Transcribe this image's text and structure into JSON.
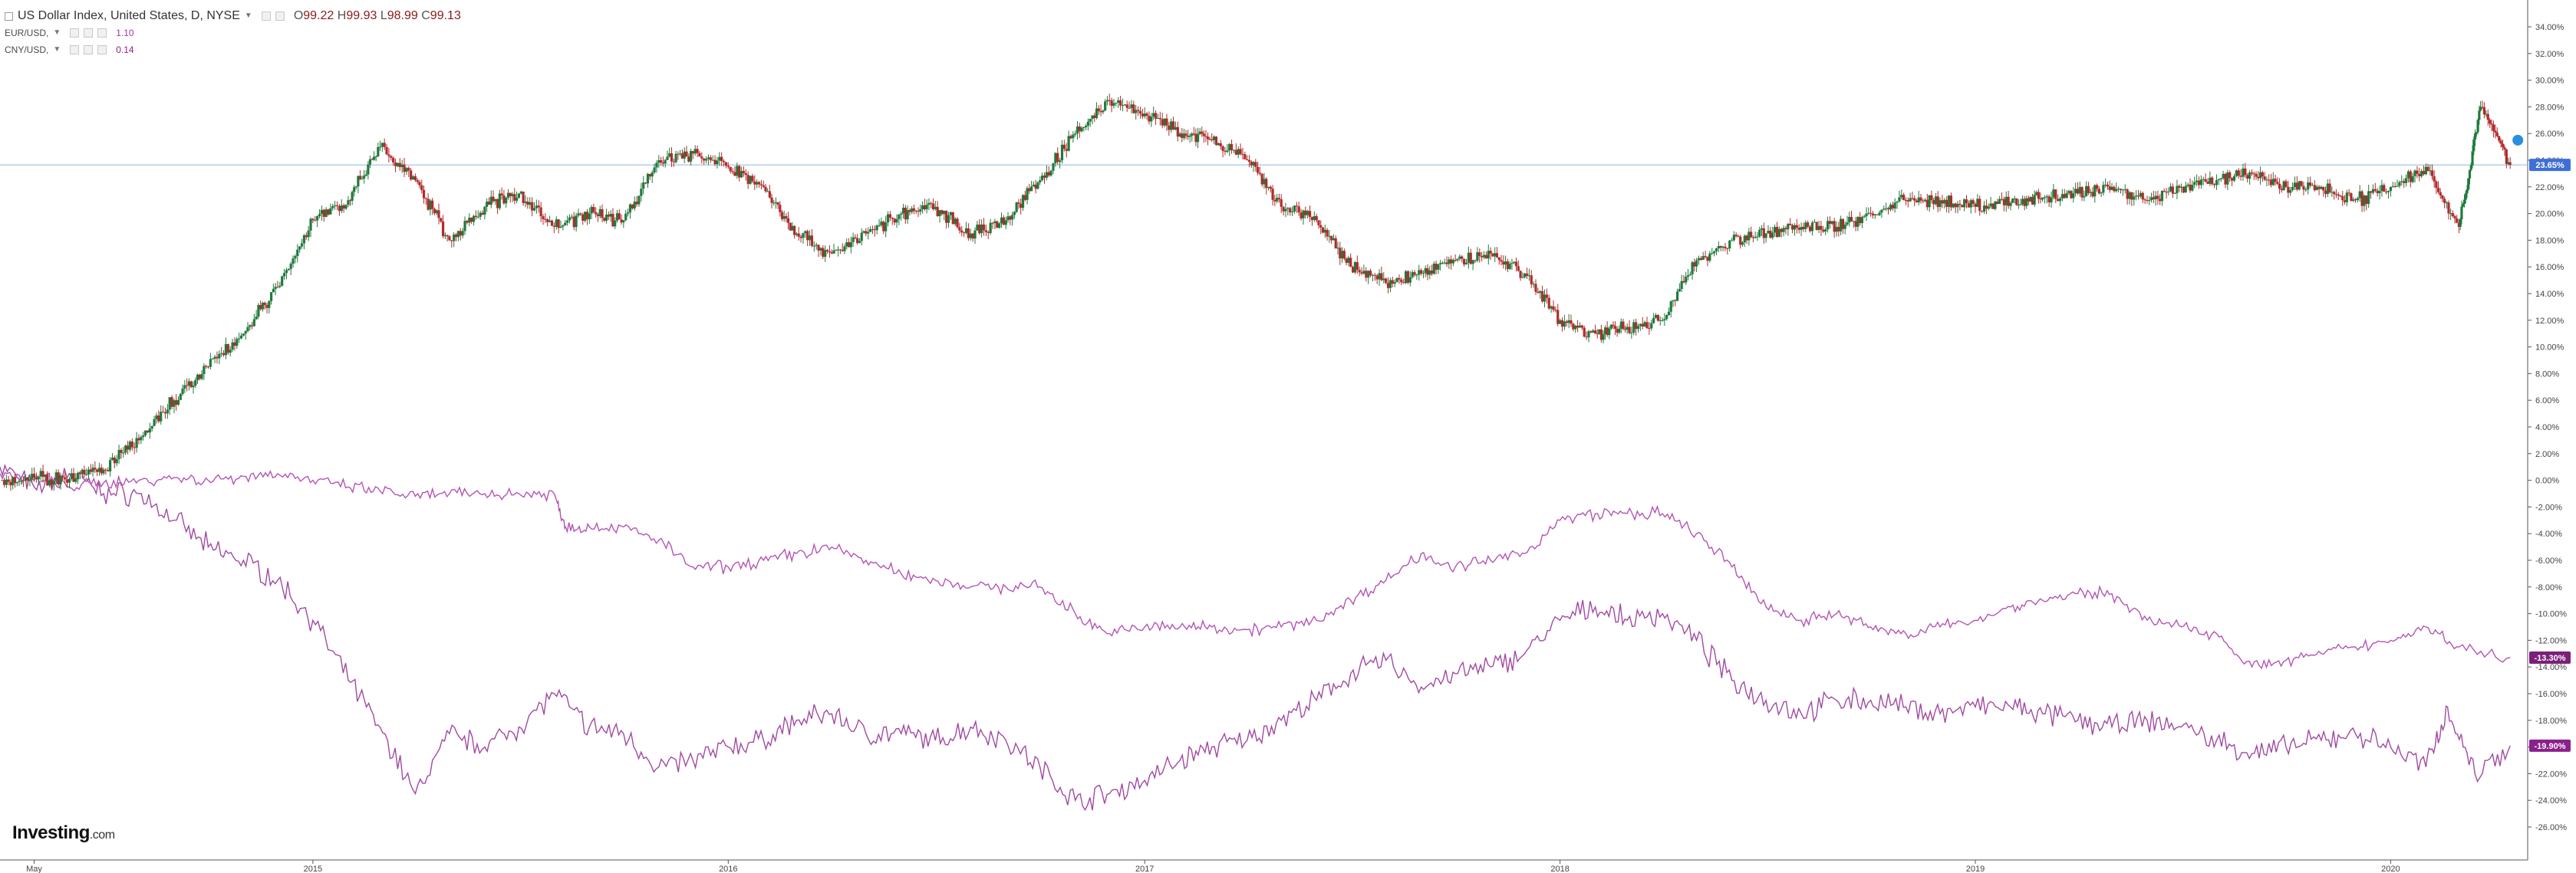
{
  "legend": {
    "main": {
      "title": "US Dollar Index, United States, D, NYSE",
      "open_label": "O",
      "open": "99.22",
      "high_label": "H",
      "high": "99.93",
      "low_label": "L",
      "low": "98.99",
      "close_label": "C",
      "close": "99.13"
    },
    "eur": {
      "title": "EUR/USD,",
      "value": "1.10"
    },
    "cny": {
      "title": "CNY/USD,",
      "value": "0.14"
    }
  },
  "logo": {
    "main": "Investing",
    "suffix": ".com"
  },
  "colors": {
    "candle_up": "#1f7a3c",
    "candle_down": "#b22a2a",
    "eur_line": "#b455b4",
    "cny_line": "#a14aa1",
    "hline": "#8fb6de",
    "label_usd": "#3d6fd6",
    "label_eur": "#7a1f7a",
    "label_cny": "#8b1f8b"
  },
  "chart_data": {
    "type": "line",
    "x_axis_labels": [
      "May",
      "2015",
      "2016",
      "2017",
      "2018",
      "2019",
      "2020"
    ],
    "y_axis_labels": [
      "34.00%",
      "32.00%",
      "30.00%",
      "28.00%",
      "26.00%",
      "24.00%",
      "22.00%",
      "20.00%",
      "18.00%",
      "16.00%",
      "14.00%",
      "12.00%",
      "10.00%",
      "8.00%",
      "6.00%",
      "4.00%",
      "2.00%",
      "0.00%",
      "-2.00%",
      "-4.00%",
      "-6.00%",
      "-8.00%",
      "-10.00%",
      "-12.00%",
      "-14.00%",
      "-16.00%",
      "-18.00%",
      "-20.00%",
      "-22.00%",
      "-24.00%",
      "-26.00%"
    ],
    "ylim": [
      -27,
      35
    ],
    "y_unit": "percent change",
    "horizontal_line": 23.65,
    "series": [
      {
        "name": "US Dollar Index",
        "style": "candlestick",
        "last_label": "23.65%",
        "points": [
          [
            "2014-04-01",
            0
          ],
          [
            "2014-05-01",
            0.2
          ],
          [
            "2014-06-01",
            0.1
          ],
          [
            "2014-07-01",
            0.8
          ],
          [
            "2014-08-01",
            3.0
          ],
          [
            "2014-09-01",
            6.0
          ],
          [
            "2014-10-01",
            8.5
          ],
          [
            "2014-11-01",
            11.0
          ],
          [
            "2014-12-01",
            14.5
          ],
          [
            "2015-01-01",
            19.5
          ],
          [
            "2015-02-01",
            21.0
          ],
          [
            "2015-03-01",
            25.0
          ],
          [
            "2015-04-01",
            22.5
          ],
          [
            "2015-05-01",
            18.0
          ],
          [
            "2015-06-01",
            20.5
          ],
          [
            "2015-07-01",
            21.5
          ],
          [
            "2015-08-01",
            19.0
          ],
          [
            "2015-09-01",
            20.0
          ],
          [
            "2015-10-01",
            19.5
          ],
          [
            "2015-11-01",
            24.0
          ],
          [
            "2015-12-01",
            24.5
          ],
          [
            "2016-01-01",
            23.5
          ],
          [
            "2016-02-01",
            22.0
          ],
          [
            "2016-03-01",
            18.5
          ],
          [
            "2016-04-01",
            17.0
          ],
          [
            "2016-05-01",
            18.5
          ],
          [
            "2016-06-01",
            20.0
          ],
          [
            "2016-07-01",
            20.5
          ],
          [
            "2016-08-01",
            18.5
          ],
          [
            "2016-09-01",
            19.5
          ],
          [
            "2016-10-01",
            22.5
          ],
          [
            "2016-11-01",
            26.0
          ],
          [
            "2016-12-01",
            28.5
          ],
          [
            "2017-01-01",
            27.5
          ],
          [
            "2017-02-01",
            26.0
          ],
          [
            "2017-03-01",
            25.5
          ],
          [
            "2017-04-01",
            24.0
          ],
          [
            "2017-05-01",
            20.5
          ],
          [
            "2017-06-01",
            19.5
          ],
          [
            "2017-07-01",
            16.0
          ],
          [
            "2017-08-01",
            14.8
          ],
          [
            "2017-09-01",
            15.5
          ],
          [
            "2017-10-01",
            16.5
          ],
          [
            "2017-11-01",
            17.0
          ],
          [
            "2017-12-01",
            15.5
          ],
          [
            "2018-01-01",
            12.0
          ],
          [
            "2018-02-01",
            11.0
          ],
          [
            "2018-03-01",
            11.5
          ],
          [
            "2018-04-01",
            12.0
          ],
          [
            "2018-05-01",
            16.5
          ],
          [
            "2018-06-01",
            18.0
          ],
          [
            "2018-07-01",
            18.5
          ],
          [
            "2018-08-01",
            19.0
          ],
          [
            "2018-09-01",
            19.0
          ],
          [
            "2018-10-01",
            20.0
          ],
          [
            "2018-11-01",
            21.0
          ],
          [
            "2018-12-01",
            21.0
          ],
          [
            "2019-01-01",
            20.5
          ],
          [
            "2019-02-01",
            20.8
          ],
          [
            "2019-03-01",
            21.2
          ],
          [
            "2019-04-01",
            21.5
          ],
          [
            "2019-05-01",
            22.0
          ],
          [
            "2019-06-01",
            21.0
          ],
          [
            "2019-07-01",
            22.0
          ],
          [
            "2019-08-01",
            22.5
          ],
          [
            "2019-09-01",
            23.0
          ],
          [
            "2019-10-01",
            22.0
          ],
          [
            "2019-11-01",
            22.0
          ],
          [
            "2019-12-01",
            21.0
          ],
          [
            "2020-01-01",
            22.0
          ],
          [
            "2020-02-01",
            23.5
          ],
          [
            "2020-03-01",
            19.0
          ],
          [
            "2020-03-20",
            28.0
          ],
          [
            "2020-04-15",
            23.65
          ]
        ]
      },
      {
        "name": "EUR/USD",
        "style": "line",
        "last_label": "-13.30%",
        "points": [
          [
            "2014-04-01",
            0.5
          ],
          [
            "2014-05-01",
            0.0
          ],
          [
            "2014-06-01",
            -0.5
          ],
          [
            "2014-07-01",
            -0.2
          ],
          [
            "2014-08-01",
            0.0
          ],
          [
            "2014-09-01",
            0.2
          ],
          [
            "2014-10-01",
            0.0
          ],
          [
            "2014-11-01",
            0.3
          ],
          [
            "2014-12-01",
            0.5
          ],
          [
            "2015-01-01",
            0.0
          ],
          [
            "2015-02-01",
            -0.5
          ],
          [
            "2015-03-01",
            -0.8
          ],
          [
            "2015-04-01",
            -1.2
          ],
          [
            "2015-05-01",
            -1.0
          ],
          [
            "2015-06-01",
            -1.0
          ],
          [
            "2015-07-01",
            -1.0
          ],
          [
            "2015-08-01",
            -1.0
          ],
          [
            "2015-08-11",
            -3.5
          ],
          [
            "2015-09-01",
            -3.5
          ],
          [
            "2015-10-01",
            -3.5
          ],
          [
            "2015-11-01",
            -4.5
          ],
          [
            "2015-12-01",
            -6.5
          ],
          [
            "2016-01-01",
            -6.5
          ],
          [
            "2016-02-01",
            -6.0
          ],
          [
            "2016-03-01",
            -5.5
          ],
          [
            "2016-04-01",
            -5.0
          ],
          [
            "2016-05-01",
            -6.0
          ],
          [
            "2016-06-01",
            -7.0
          ],
          [
            "2016-07-01",
            -7.5
          ],
          [
            "2016-08-01",
            -8.0
          ],
          [
            "2016-09-01",
            -8.0
          ],
          [
            "2016-10-01",
            -8.0
          ],
          [
            "2016-11-01",
            -10.0
          ],
          [
            "2016-12-01",
            -11.5
          ],
          [
            "2017-01-01",
            -11.0
          ],
          [
            "2017-02-01",
            -11.0
          ],
          [
            "2017-03-01",
            -11.0
          ],
          [
            "2017-04-01",
            -11.2
          ],
          [
            "2017-05-01",
            -11.0
          ],
          [
            "2017-06-01",
            -10.5
          ],
          [
            "2017-07-01",
            -9.0
          ],
          [
            "2017-08-01",
            -7.5
          ],
          [
            "2017-09-01",
            -5.5
          ],
          [
            "2017-10-01",
            -6.5
          ],
          [
            "2017-11-01",
            -6.0
          ],
          [
            "2017-12-01",
            -5.5
          ],
          [
            "2018-01-01",
            -3.0
          ],
          [
            "2018-02-01",
            -2.5
          ],
          [
            "2018-03-01",
            -2.5
          ],
          [
            "2018-04-01",
            -2.5
          ],
          [
            "2018-05-01",
            -4.0
          ],
          [
            "2018-06-01",
            -6.5
          ],
          [
            "2018-07-01",
            -9.5
          ],
          [
            "2018-08-01",
            -10.5
          ],
          [
            "2018-09-01",
            -10.0
          ],
          [
            "2018-10-01",
            -11.0
          ],
          [
            "2018-11-01",
            -11.5
          ],
          [
            "2018-12-01",
            -11.0
          ],
          [
            "2019-01-01",
            -10.5
          ],
          [
            "2019-02-01",
            -9.5
          ],
          [
            "2019-03-01",
            -9.0
          ],
          [
            "2019-04-01",
            -8.5
          ],
          [
            "2019-05-01",
            -8.5
          ],
          [
            "2019-06-01",
            -10.5
          ],
          [
            "2019-07-01",
            -11.0
          ],
          [
            "2019-08-01",
            -11.5
          ],
          [
            "2019-09-01",
            -14.0
          ],
          [
            "2019-10-01",
            -13.5
          ],
          [
            "2019-11-01",
            -13.0
          ],
          [
            "2019-12-01",
            -12.5
          ],
          [
            "2020-01-01",
            -12.0
          ],
          [
            "2020-02-01",
            -11.0
          ],
          [
            "2020-03-01",
            -12.5
          ],
          [
            "2020-04-15",
            -13.3
          ]
        ]
      },
      {
        "name": "CNY/USD",
        "style": "line",
        "last_label": "-19.90%",
        "points": [
          [
            "2014-04-01",
            1.0
          ],
          [
            "2014-05-01",
            -0.5
          ],
          [
            "2014-06-01",
            0.5
          ],
          [
            "2014-07-01",
            -1.0
          ],
          [
            "2014-08-01",
            -1.0
          ],
          [
            "2014-09-01",
            -3.0
          ],
          [
            "2014-10-01",
            -5.0
          ],
          [
            "2014-11-01",
            -6.0
          ],
          [
            "2014-12-01",
            -7.5
          ],
          [
            "2015-01-01",
            -10.5
          ],
          [
            "2015-02-01",
            -15.0
          ],
          [
            "2015-03-01",
            -18.5
          ],
          [
            "2015-04-01",
            -23.5
          ],
          [
            "2015-05-01",
            -19.0
          ],
          [
            "2015-06-01",
            -20.0
          ],
          [
            "2015-07-01",
            -18.5
          ],
          [
            "2015-08-01",
            -16.0
          ],
          [
            "2015-09-01",
            -18.5
          ],
          [
            "2015-10-01",
            -19.0
          ],
          [
            "2015-11-01",
            -21.5
          ],
          [
            "2015-12-01",
            -21.0
          ],
          [
            "2016-01-01",
            -20.0
          ],
          [
            "2016-02-01",
            -19.5
          ],
          [
            "2016-03-01",
            -18.0
          ],
          [
            "2016-04-01",
            -17.5
          ],
          [
            "2016-05-01",
            -19.0
          ],
          [
            "2016-06-01",
            -19.0
          ],
          [
            "2016-07-01",
            -19.5
          ],
          [
            "2016-08-01",
            -18.5
          ],
          [
            "2016-09-01",
            -19.5
          ],
          [
            "2016-10-01",
            -21.5
          ],
          [
            "2016-11-01",
            -24.0
          ],
          [
            "2016-12-01",
            -23.5
          ],
          [
            "2017-01-01",
            -22.5
          ],
          [
            "2017-02-01",
            -21.0
          ],
          [
            "2017-03-01",
            -20.0
          ],
          [
            "2017-04-01",
            -19.5
          ],
          [
            "2017-05-01",
            -18.0
          ],
          [
            "2017-06-01",
            -16.5
          ],
          [
            "2017-07-01",
            -14.5
          ],
          [
            "2017-08-01",
            -13.5
          ],
          [
            "2017-09-01",
            -15.5
          ],
          [
            "2017-10-01",
            -14.5
          ],
          [
            "2017-11-01",
            -14.0
          ],
          [
            "2017-12-01",
            -13.0
          ],
          [
            "2018-01-01",
            -10.5
          ],
          [
            "2018-02-01",
            -9.5
          ],
          [
            "2018-03-01",
            -10.5
          ],
          [
            "2018-04-01",
            -10.0
          ],
          [
            "2018-05-01",
            -12.0
          ],
          [
            "2018-06-01",
            -15.0
          ],
          [
            "2018-07-01",
            -16.5
          ],
          [
            "2018-08-01",
            -17.5
          ],
          [
            "2018-09-01",
            -16.5
          ],
          [
            "2018-10-01",
            -16.5
          ],
          [
            "2018-11-01",
            -17.0
          ],
          [
            "2018-12-01",
            -17.5
          ],
          [
            "2019-01-01",
            -17.0
          ],
          [
            "2019-02-01",
            -17.0
          ],
          [
            "2019-03-01",
            -17.5
          ],
          [
            "2019-04-01",
            -18.0
          ],
          [
            "2019-05-01",
            -18.5
          ],
          [
            "2019-06-01",
            -18.0
          ],
          [
            "2019-07-01",
            -18.5
          ],
          [
            "2019-08-01",
            -19.5
          ],
          [
            "2019-09-01",
            -20.5
          ],
          [
            "2019-10-01",
            -20.0
          ],
          [
            "2019-11-01",
            -19.5
          ],
          [
            "2019-12-01",
            -19.0
          ],
          [
            "2020-01-01",
            -20.0
          ],
          [
            "2020-02-01",
            -21.5
          ],
          [
            "2020-02-20",
            -17.0
          ],
          [
            "2020-03-15",
            -22.0
          ],
          [
            "2020-04-15",
            -19.9
          ]
        ]
      }
    ]
  }
}
